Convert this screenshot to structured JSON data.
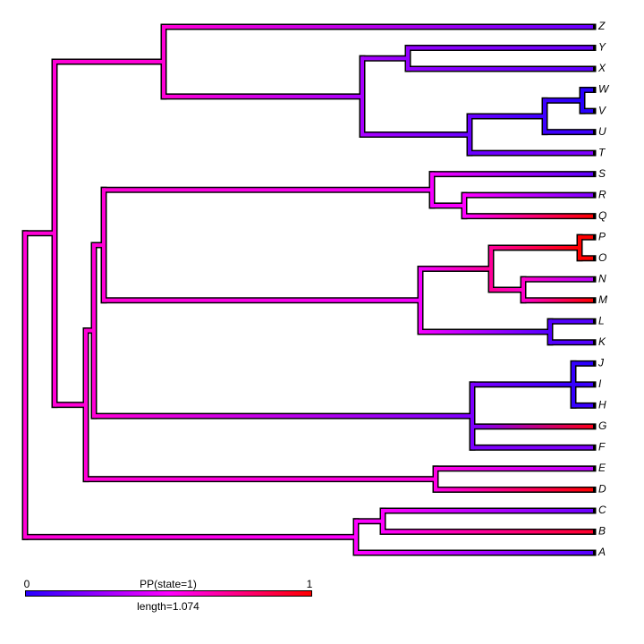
{
  "tips": [
    "Z",
    "Y",
    "X",
    "W",
    "V",
    "U",
    "T",
    "S",
    "R",
    "Q",
    "P",
    "O",
    "N",
    "M",
    "L",
    "K",
    "J",
    "I",
    "H",
    "G",
    "F",
    "E",
    "D",
    "C",
    "B",
    "A"
  ],
  "legend": {
    "min_label": 0,
    "title": "PP(state=1)",
    "max_label": 1,
    "length_label": "length=1.074"
  }
}
